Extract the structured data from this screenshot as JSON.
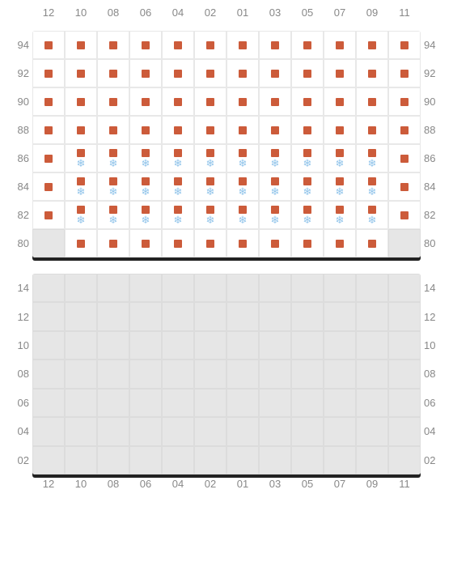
{
  "colors": {
    "seat_marker": "#cc5b3a",
    "snow_marker": "#8fc3ea",
    "unavail_bg": "#e6e6e6",
    "label": "#888888",
    "shadow": "#222222",
    "bg": "#ffffff"
  },
  "columns": [
    "12",
    "10",
    "08",
    "06",
    "04",
    "02",
    "01",
    "03",
    "05",
    "07",
    "09",
    "11"
  ],
  "upper": {
    "rows": [
      "94",
      "92",
      "90",
      "88",
      "86",
      "84",
      "82",
      "80"
    ],
    "cells": [
      [
        {
          "m": [
            "sq"
          ]
        },
        {
          "m": [
            "sq"
          ]
        },
        {
          "m": [
            "sq"
          ]
        },
        {
          "m": [
            "sq"
          ]
        },
        {
          "m": [
            "sq"
          ]
        },
        {
          "m": [
            "sq"
          ]
        },
        {
          "m": [
            "sq"
          ]
        },
        {
          "m": [
            "sq"
          ]
        },
        {
          "m": [
            "sq"
          ]
        },
        {
          "m": [
            "sq"
          ]
        },
        {
          "m": [
            "sq"
          ]
        },
        {
          "m": [
            "sq"
          ]
        }
      ],
      [
        {
          "m": [
            "sq"
          ]
        },
        {
          "m": [
            "sq"
          ]
        },
        {
          "m": [
            "sq"
          ]
        },
        {
          "m": [
            "sq"
          ]
        },
        {
          "m": [
            "sq"
          ]
        },
        {
          "m": [
            "sq"
          ]
        },
        {
          "m": [
            "sq"
          ]
        },
        {
          "m": [
            "sq"
          ]
        },
        {
          "m": [
            "sq"
          ]
        },
        {
          "m": [
            "sq"
          ]
        },
        {
          "m": [
            "sq"
          ]
        },
        {
          "m": [
            "sq"
          ]
        }
      ],
      [
        {
          "m": [
            "sq"
          ]
        },
        {
          "m": [
            "sq"
          ]
        },
        {
          "m": [
            "sq"
          ]
        },
        {
          "m": [
            "sq"
          ]
        },
        {
          "m": [
            "sq"
          ]
        },
        {
          "m": [
            "sq"
          ]
        },
        {
          "m": [
            "sq"
          ]
        },
        {
          "m": [
            "sq"
          ]
        },
        {
          "m": [
            "sq"
          ]
        },
        {
          "m": [
            "sq"
          ]
        },
        {
          "m": [
            "sq"
          ]
        },
        {
          "m": [
            "sq"
          ]
        }
      ],
      [
        {
          "m": [
            "sq"
          ]
        },
        {
          "m": [
            "sq"
          ]
        },
        {
          "m": [
            "sq"
          ]
        },
        {
          "m": [
            "sq"
          ]
        },
        {
          "m": [
            "sq"
          ]
        },
        {
          "m": [
            "sq"
          ]
        },
        {
          "m": [
            "sq"
          ]
        },
        {
          "m": [
            "sq"
          ]
        },
        {
          "m": [
            "sq"
          ]
        },
        {
          "m": [
            "sq"
          ]
        },
        {
          "m": [
            "sq"
          ]
        },
        {
          "m": [
            "sq"
          ]
        }
      ],
      [
        {
          "m": [
            "sq"
          ]
        },
        {
          "m": [
            "sq",
            "sn"
          ]
        },
        {
          "m": [
            "sq",
            "sn"
          ]
        },
        {
          "m": [
            "sq",
            "sn"
          ]
        },
        {
          "m": [
            "sq",
            "sn"
          ]
        },
        {
          "m": [
            "sq",
            "sn"
          ]
        },
        {
          "m": [
            "sq",
            "sn"
          ]
        },
        {
          "m": [
            "sq",
            "sn"
          ]
        },
        {
          "m": [
            "sq",
            "sn"
          ]
        },
        {
          "m": [
            "sq",
            "sn"
          ]
        },
        {
          "m": [
            "sq",
            "sn"
          ]
        },
        {
          "m": [
            "sq"
          ]
        }
      ],
      [
        {
          "m": [
            "sq"
          ]
        },
        {
          "m": [
            "sq",
            "sn"
          ]
        },
        {
          "m": [
            "sq",
            "sn"
          ]
        },
        {
          "m": [
            "sq",
            "sn"
          ]
        },
        {
          "m": [
            "sq",
            "sn"
          ]
        },
        {
          "m": [
            "sq",
            "sn"
          ]
        },
        {
          "m": [
            "sq",
            "sn"
          ]
        },
        {
          "m": [
            "sq",
            "sn"
          ]
        },
        {
          "m": [
            "sq",
            "sn"
          ]
        },
        {
          "m": [
            "sq",
            "sn"
          ]
        },
        {
          "m": [
            "sq",
            "sn"
          ]
        },
        {
          "m": [
            "sq"
          ]
        }
      ],
      [
        {
          "m": [
            "sq"
          ]
        },
        {
          "m": [
            "sq",
            "sn"
          ]
        },
        {
          "m": [
            "sq",
            "sn"
          ]
        },
        {
          "m": [
            "sq",
            "sn"
          ]
        },
        {
          "m": [
            "sq",
            "sn"
          ]
        },
        {
          "m": [
            "sq",
            "sn"
          ]
        },
        {
          "m": [
            "sq",
            "sn"
          ]
        },
        {
          "m": [
            "sq",
            "sn"
          ]
        },
        {
          "m": [
            "sq",
            "sn"
          ]
        },
        {
          "m": [
            "sq",
            "sn"
          ]
        },
        {
          "m": [
            "sq",
            "sn"
          ]
        },
        {
          "m": [
            "sq"
          ]
        }
      ],
      [
        {
          "u": true
        },
        {
          "m": [
            "sq"
          ]
        },
        {
          "m": [
            "sq"
          ]
        },
        {
          "m": [
            "sq"
          ]
        },
        {
          "m": [
            "sq"
          ]
        },
        {
          "m": [
            "sq"
          ]
        },
        {
          "m": [
            "sq"
          ]
        },
        {
          "m": [
            "sq"
          ]
        },
        {
          "m": [
            "sq"
          ]
        },
        {
          "m": [
            "sq"
          ]
        },
        {
          "m": [
            "sq"
          ]
        },
        {
          "u": true
        }
      ]
    ]
  },
  "lower": {
    "rows": [
      "14",
      "12",
      "10",
      "08",
      "06",
      "04",
      "02"
    ],
    "cells": [
      [
        {
          "u": true
        },
        {
          "u": true
        },
        {
          "u": true
        },
        {
          "u": true
        },
        {
          "u": true
        },
        {
          "u": true
        },
        {
          "u": true
        },
        {
          "u": true
        },
        {
          "u": true
        },
        {
          "u": true
        },
        {
          "u": true
        },
        {
          "u": true
        }
      ],
      [
        {
          "u": true
        },
        {
          "u": true
        },
        {
          "u": true
        },
        {
          "u": true
        },
        {
          "u": true
        },
        {
          "u": true
        },
        {
          "u": true
        },
        {
          "u": true
        },
        {
          "u": true
        },
        {
          "u": true
        },
        {
          "u": true
        },
        {
          "u": true
        }
      ],
      [
        {
          "u": true
        },
        {
          "u": true
        },
        {
          "u": true
        },
        {
          "u": true
        },
        {
          "u": true
        },
        {
          "u": true
        },
        {
          "u": true
        },
        {
          "u": true
        },
        {
          "u": true
        },
        {
          "u": true
        },
        {
          "u": true
        },
        {
          "u": true
        }
      ],
      [
        {
          "u": true
        },
        {
          "u": true
        },
        {
          "u": true
        },
        {
          "u": true
        },
        {
          "u": true
        },
        {
          "u": true
        },
        {
          "u": true
        },
        {
          "u": true
        },
        {
          "u": true
        },
        {
          "u": true
        },
        {
          "u": true
        },
        {
          "u": true
        }
      ],
      [
        {
          "u": true
        },
        {
          "u": true
        },
        {
          "u": true
        },
        {
          "u": true
        },
        {
          "u": true
        },
        {
          "u": true
        },
        {
          "u": true
        },
        {
          "u": true
        },
        {
          "u": true
        },
        {
          "u": true
        },
        {
          "u": true
        },
        {
          "u": true
        }
      ],
      [
        {
          "u": true
        },
        {
          "u": true
        },
        {
          "u": true
        },
        {
          "u": true
        },
        {
          "u": true
        },
        {
          "u": true
        },
        {
          "u": true
        },
        {
          "u": true
        },
        {
          "u": true
        },
        {
          "u": true
        },
        {
          "u": true
        },
        {
          "u": true
        }
      ],
      [
        {
          "u": true
        },
        {
          "u": true
        },
        {
          "u": true
        },
        {
          "u": true
        },
        {
          "u": true
        },
        {
          "u": true
        },
        {
          "u": true
        },
        {
          "u": true
        },
        {
          "u": true
        },
        {
          "u": true
        },
        {
          "u": true
        },
        {
          "u": true
        }
      ]
    ]
  }
}
